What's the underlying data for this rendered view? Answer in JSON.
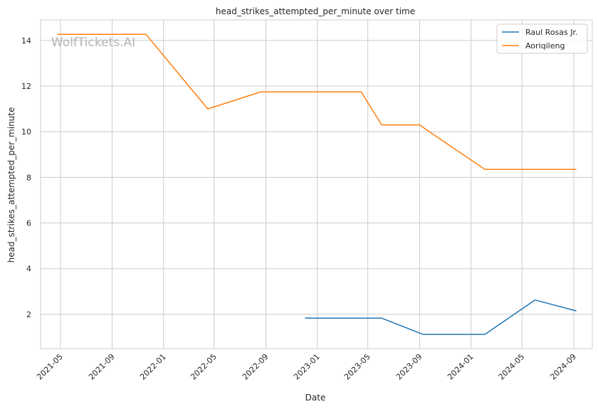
{
  "chart_data": {
    "type": "line",
    "title": "head_strikes_attempted_per_minute over time",
    "xlabel": "Date",
    "ylabel": "head_strikes_attempted_per_minute",
    "watermark": "WolfTickets.AI",
    "x_ticks": [
      "2021-05",
      "2021-09",
      "2022-01",
      "2022-05",
      "2022-09",
      "2023-01",
      "2023-05",
      "2023-09",
      "2024-01",
      "2024-05",
      "2024-09"
    ],
    "y_ticks": [
      2,
      4,
      6,
      8,
      10,
      12,
      14
    ],
    "xlim": [
      "2021-03-15",
      "2024-10-15"
    ],
    "ylim": [
      0.5,
      14.9
    ],
    "grid": true,
    "legend_position": "top-right",
    "series": [
      {
        "name": "Raul Rosas Jr.",
        "color": "#1f77b4",
        "points": [
          {
            "x": "2022-12-03",
            "y": 1.83
          },
          {
            "x": "2023-06-03",
            "y": 1.83
          },
          {
            "x": "2023-09-09",
            "y": 1.12
          },
          {
            "x": "2024-02-03",
            "y": 1.12
          },
          {
            "x": "2024-06-01",
            "y": 2.63
          },
          {
            "x": "2024-09-07",
            "y": 2.15
          }
        ]
      },
      {
        "name": "Aoriqileng",
        "color": "#ff7f0e",
        "points": [
          {
            "x": "2021-04-24",
            "y": 14.27
          },
          {
            "x": "2021-11-20",
            "y": 14.27
          },
          {
            "x": "2022-04-16",
            "y": 11.0
          },
          {
            "x": "2022-08-20",
            "y": 11.75
          },
          {
            "x": "2023-04-15",
            "y": 11.75
          },
          {
            "x": "2023-06-03",
            "y": 10.3
          },
          {
            "x": "2023-09-02",
            "y": 10.3
          },
          {
            "x": "2023-09-16",
            "y": 10.1
          },
          {
            "x": "2024-02-03",
            "y": 8.35
          },
          {
            "x": "2024-09-07",
            "y": 8.35
          }
        ]
      }
    ]
  }
}
